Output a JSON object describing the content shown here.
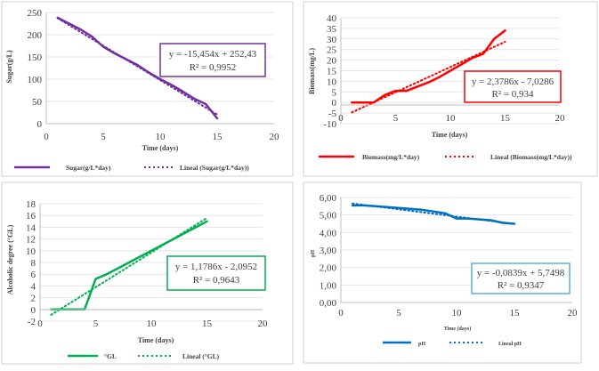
{
  "chart_data": [
    {
      "type": "line",
      "title": "",
      "xlabel": "Time (days)",
      "ylabel": "Sugar(g/L)",
      "xlim": [
        0,
        20
      ],
      "ylim": [
        0,
        250
      ],
      "xticks": [
        "0",
        "5",
        "10",
        "15",
        "20"
      ],
      "yticks": [
        "0",
        "50",
        "100",
        "150",
        "200",
        "250"
      ],
      "color": "#7030a0",
      "series": [
        {
          "name": "Sugar(g/L*day)",
          "style": "solid",
          "x": [
            1,
            2,
            3,
            4,
            5,
            6,
            7,
            8,
            9,
            10,
            11,
            12,
            13,
            14,
            14.5,
            15
          ],
          "y": [
            238,
            225,
            212,
            196,
            173,
            158,
            145,
            132,
            115,
            100,
            87,
            72,
            56,
            44,
            28,
            12
          ]
        },
        {
          "name": "Lineal (Sugar(g/L*day))",
          "style": "dotted",
          "x": [
            1,
            15
          ],
          "y": [
            236.98,
            20.62
          ]
        }
      ],
      "equation": [
        "y = -15,454x + 252,43",
        "R² = 0,9952"
      ],
      "legend": [
        "Sugar(g/L*day)",
        "Lineal (Sugar(g/L*day))"
      ]
    },
    {
      "type": "line",
      "title": "",
      "xlabel": "Time (days)",
      "ylabel": "Biomass(mg/L)",
      "xlim": [
        0,
        20
      ],
      "ylim": [
        -10,
        40
      ],
      "xticks": [
        "0",
        "5",
        "10",
        "15",
        "20"
      ],
      "yticks": [
        "-10",
        "-5",
        "0",
        "5",
        "10",
        "15",
        "20",
        "25",
        "30",
        "35",
        "40"
      ],
      "color": "#ff0000",
      "series": [
        {
          "name": "Biomass(mg/L*day)",
          "style": "solid",
          "x": [
            1,
            2,
            3,
            4,
            5,
            6,
            7,
            8,
            9,
            10,
            11,
            12,
            13,
            14,
            15
          ],
          "y": [
            0,
            0,
            0,
            3.5,
            5.5,
            5.5,
            7.5,
            9.5,
            12,
            15,
            18,
            21,
            23,
            30,
            34
          ]
        },
        {
          "name": "Lineal (Biomass(mg/L*day))",
          "style": "dotted",
          "x": [
            1,
            15
          ],
          "y": [
            -4.65,
            28.65
          ]
        }
      ],
      "equation": [
        "y = 2,3786x - 7,0286",
        "R² = 0,934"
      ],
      "legend": [
        "Biomass(mg/L*day)",
        "Lineal (Biomass(mg/L*day))"
      ]
    },
    {
      "type": "line",
      "title": "",
      "xlabel": "Time (days)",
      "ylabel": "Alcoholic degree (°GL)",
      "xlim": [
        0,
        20
      ],
      "ylim": [
        -2,
        18
      ],
      "xticks": [
        "0",
        "5",
        "10",
        "15",
        "20"
      ],
      "yticks": [
        "-2",
        "0",
        "2",
        "4",
        "6",
        "8",
        "10",
        "12",
        "14",
        "16",
        "18"
      ],
      "color": "#00b050",
      "series": [
        {
          "name": "°GL",
          "style": "solid",
          "x": [
            1,
            2,
            3,
            4,
            5,
            6,
            7,
            8,
            9,
            10,
            11,
            12,
            13,
            14,
            15
          ],
          "y": [
            0,
            0,
            0,
            0,
            5.2,
            6,
            7,
            8,
            9,
            10,
            11,
            12,
            13,
            14,
            15
          ]
        },
        {
          "name": "Lineal (°GL)",
          "style": "dotted",
          "x": [
            1,
            15
          ],
          "y": [
            -0.92,
            15.59
          ]
        }
      ],
      "equation": [
        "y = 1,1786x - 2,0952",
        "R² = 0,9643"
      ],
      "legend": [
        "°GL",
        "Lineal (°GL)"
      ]
    },
    {
      "type": "line",
      "title": "",
      "xlabel": "Time (days)",
      "ylabel": "pH",
      "xlim": [
        0,
        20
      ],
      "ylim": [
        0,
        6
      ],
      "xticks": [
        "0",
        "5",
        "10",
        "15",
        "20"
      ],
      "yticks": [
        "0,00",
        "1,00",
        "2,00",
        "3,00",
        "4,00",
        "5,00",
        "6,00"
      ],
      "color": "#0070c0",
      "series": [
        {
          "name": "pH",
          "style": "solid",
          "x": [
            1,
            2,
            3,
            4,
            5,
            6,
            7,
            8,
            9,
            10,
            11,
            12,
            13,
            14,
            15
          ],
          "y": [
            5.55,
            5.55,
            5.5,
            5.45,
            5.4,
            5.35,
            5.3,
            5.2,
            5.1,
            4.8,
            4.8,
            4.75,
            4.7,
            4.55,
            4.5
          ]
        },
        {
          "name": "Lineal pH",
          "style": "dotted",
          "x": [
            1,
            15
          ],
          "y": [
            5.66,
            4.49
          ]
        }
      ],
      "equation": [
        "y = -0,0839x + 5,7498",
        "R² = 0,9347"
      ],
      "legend": [
        "pH",
        "Lineal pH"
      ]
    }
  ]
}
